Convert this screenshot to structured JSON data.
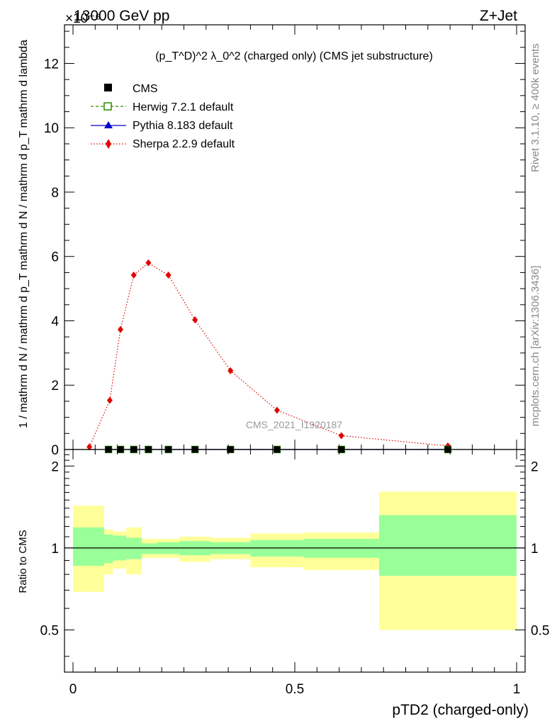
{
  "header": {
    "left": "13000 GeV pp",
    "exponent": "×10⁻⁶",
    "right": "Z+Jet"
  },
  "side_labels": {
    "rivet": "Rivet 3.1.10, ≥ 400k events",
    "mcplots": "mcplots.cern.ch [arXiv:1306.3436]"
  },
  "watermark": "CMS_2021_I1920187",
  "colors": {
    "cms": "#000000",
    "herwig": "#2e8b00",
    "pythia": "#0000cc",
    "sherpa": "#e00000",
    "band_inner": "#99ff99",
    "band_outer": "#ffff99"
  },
  "chart_data": [
    {
      "type": "line",
      "title": "(p_T^D)^2 λ_0^2 (charged only) (CMS jet substructure)",
      "ylabel": "1 / mathrm d N / mathrm d p_T mathrm d N / mathrm d p_T mathrm d lambda",
      "xlim": [
        0,
        1
      ],
      "ylim": [
        0,
        13.2
      ],
      "y_scale_note": "×10⁻⁶",
      "yticks": [
        0,
        2,
        4,
        6,
        8,
        10,
        12
      ],
      "legend_position": "top-left",
      "legend": [
        {
          "label": "CMS",
          "marker": "filled-square"
        },
        {
          "label": "Herwig 7.2.1 default",
          "marker": "open-square"
        },
        {
          "label": "Pythia 8.183 default",
          "marker": "filled-triangle"
        },
        {
          "label": "Sherpa 2.2.9 default",
          "marker": "filled-diamond"
        }
      ],
      "series": [
        {
          "name": "CMS",
          "x": [
            0.08,
            0.107,
            0.137,
            0.17,
            0.215,
            0.275,
            0.355,
            0.46,
            0.605,
            0.845
          ],
          "y": [
            0,
            0,
            0,
            0,
            0,
            0,
            0,
            0,
            0,
            0
          ]
        },
        {
          "name": "Herwig 7.2.1 default",
          "x": [
            0.08,
            0.107,
            0.137,
            0.17,
            0.215,
            0.275,
            0.355,
            0.46,
            0.605,
            0.845
          ],
          "y": [
            0,
            0,
            0,
            0,
            0,
            0,
            0,
            0,
            0,
            0
          ]
        },
        {
          "name": "Pythia 8.183 default",
          "x": [
            0.08,
            0.107,
            0.137,
            0.17,
            0.215,
            0.275,
            0.355,
            0.46,
            0.605,
            0.845
          ],
          "y": [
            0,
            0,
            0,
            0,
            0,
            0,
            0,
            0,
            0,
            0
          ]
        },
        {
          "name": "Sherpa 2.2.9 default",
          "x": [
            0.037,
            0.083,
            0.107,
            0.137,
            0.17,
            0.215,
            0.275,
            0.355,
            0.46,
            0.605,
            0.845
          ],
          "y": [
            0.08,
            1.53,
            3.73,
            5.42,
            5.8,
            5.42,
            4.03,
            2.45,
            1.22,
            0.43,
            0.11
          ]
        }
      ]
    },
    {
      "type": "area",
      "xlabel": "pTD2 (charged-only)",
      "ylabel": "Ratio to CMS",
      "xlim": [
        0,
        1
      ],
      "ylim": [
        0.35,
        2.3
      ],
      "xticks": [
        0,
        0.5,
        1
      ],
      "xtick_labels": [
        "0",
        "0.5",
        "1"
      ],
      "yticks": [
        0.5,
        1,
        2
      ],
      "ytick_labels": [
        "0.5",
        "1",
        "2"
      ],
      "reference_line": 1,
      "bins": [
        {
          "lo": 0.0,
          "hi": 0.07,
          "inner": [
            0.86,
            1.19
          ],
          "outer": [
            0.69,
            1.43
          ]
        },
        {
          "lo": 0.07,
          "hi": 0.09,
          "inner": [
            0.88,
            1.12
          ],
          "outer": [
            0.8,
            1.17
          ]
        },
        {
          "lo": 0.09,
          "hi": 0.12,
          "inner": [
            0.9,
            1.11
          ],
          "outer": [
            0.84,
            1.15
          ]
        },
        {
          "lo": 0.12,
          "hi": 0.155,
          "inner": [
            0.91,
            1.09
          ],
          "outer": [
            0.8,
            1.19
          ]
        },
        {
          "lo": 0.155,
          "hi": 0.19,
          "inner": [
            0.95,
            1.04
          ],
          "outer": [
            0.92,
            1.08
          ]
        },
        {
          "lo": 0.19,
          "hi": 0.24,
          "inner": [
            0.95,
            1.05
          ],
          "outer": [
            0.92,
            1.08
          ]
        },
        {
          "lo": 0.24,
          "hi": 0.31,
          "inner": [
            0.94,
            1.06
          ],
          "outer": [
            0.89,
            1.1
          ]
        },
        {
          "lo": 0.31,
          "hi": 0.4,
          "inner": [
            0.95,
            1.05
          ],
          "outer": [
            0.91,
            1.09
          ]
        },
        {
          "lo": 0.4,
          "hi": 0.52,
          "inner": [
            0.93,
            1.07
          ],
          "outer": [
            0.85,
            1.13
          ]
        },
        {
          "lo": 0.52,
          "hi": 0.69,
          "inner": [
            0.92,
            1.08
          ],
          "outer": [
            0.83,
            1.14
          ]
        },
        {
          "lo": 0.69,
          "hi": 1.0,
          "inner": [
            0.79,
            1.32
          ],
          "outer": [
            0.5,
            1.61
          ]
        }
      ]
    }
  ]
}
